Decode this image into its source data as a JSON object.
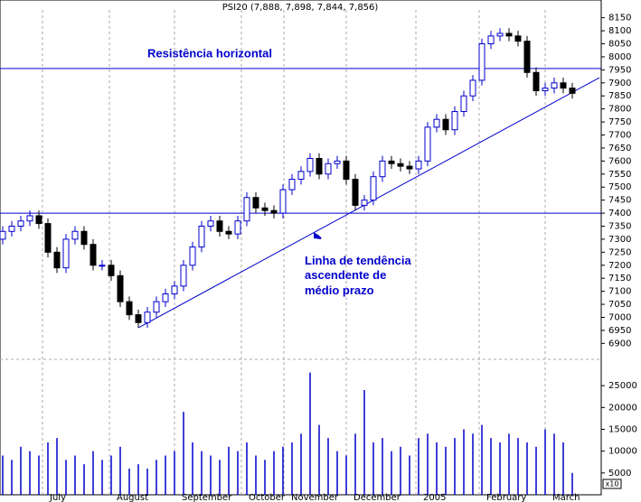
{
  "chart_data": {
    "type": "candlestick",
    "title": "PSI20 (7,888, 7,898, 7,844, 7,856)",
    "xlim": [
      -0.3,
      66.2
    ],
    "xticks": [
      {
        "value": 4.4,
        "label": "July"
      },
      {
        "value": 11.8,
        "label": "August"
      },
      {
        "value": 19,
        "label": "September"
      },
      {
        "value": 26.4,
        "label": "October"
      },
      {
        "value": 31.1,
        "label": "November"
      },
      {
        "value": 38,
        "label": "December"
      },
      {
        "value": 45.7,
        "label": "2005"
      },
      {
        "value": 52.7,
        "label": "February"
      },
      {
        "value": 60,
        "label": "March"
      }
    ],
    "ylim": [
      6870,
      8180
    ],
    "yticks": [
      6900,
      6950,
      7000,
      7050,
      7100,
      7150,
      7200,
      7250,
      7300,
      7350,
      7400,
      7450,
      7500,
      7550,
      7600,
      7650,
      7700,
      7750,
      7800,
      7850,
      7900,
      7950,
      8000,
      8050,
      8100,
      8150
    ],
    "open": [
      7300,
      7330,
      7350,
      7370,
      7390,
      7360,
      7250,
      7190,
      7300,
      7330,
      7280,
      7200,
      7200,
      7160,
      7060,
      7010,
      6980,
      7020,
      7060,
      7090,
      7120,
      7200,
      7270,
      7350,
      7370,
      7330,
      7320,
      7370,
      7460,
      7420,
      7410,
      7400,
      7490,
      7530,
      7560,
      7610,
      7550,
      7590,
      7600,
      7530,
      7430,
      7450,
      7540,
      7600,
      7590,
      7580,
      7570,
      7600,
      7730,
      7760,
      7720,
      7790,
      7850,
      7910,
      8050,
      8080,
      8090,
      8080,
      8060,
      7940,
      7870,
      7880,
      7900,
      7880
    ],
    "high": [
      7350,
      7370,
      7390,
      7410,
      7410,
      7380,
      7270,
      7320,
      7350,
      7350,
      7300,
      7220,
      7220,
      7180,
      7080,
      7030,
      7040,
      7080,
      7110,
      7140,
      7220,
      7290,
      7370,
      7390,
      7390,
      7350,
      7390,
      7480,
      7480,
      7440,
      7430,
      7510,
      7550,
      7580,
      7630,
      7630,
      7610,
      7620,
      7620,
      7550,
      7470,
      7560,
      7620,
      7620,
      7610,
      7600,
      7620,
      7750,
      7780,
      7780,
      7810,
      7870,
      7930,
      8070,
      8100,
      8110,
      8110,
      8100,
      8080,
      7960,
      7900,
      7920,
      7920,
      7900
    ],
    "low": [
      7280,
      7310,
      7330,
      7350,
      7340,
      7230,
      7170,
      7170,
      7280,
      7260,
      7180,
      7180,
      7140,
      7040,
      6990,
      6960,
      6960,
      7000,
      7040,
      7070,
      7100,
      7180,
      7250,
      7330,
      7310,
      7300,
      7300,
      7350,
      7400,
      7390,
      7380,
      7380,
      7470,
      7510,
      7540,
      7530,
      7530,
      7570,
      7510,
      7410,
      7410,
      7430,
      7520,
      7570,
      7560,
      7550,
      7550,
      7580,
      7710,
      7700,
      7700,
      7770,
      7830,
      7890,
      8030,
      8060,
      8060,
      8040,
      7920,
      7850,
      7850,
      7860,
      7860,
      7840
    ],
    "close": [
      7330,
      7350,
      7370,
      7390,
      7360,
      7250,
      7190,
      7300,
      7330,
      7280,
      7200,
      7200,
      7160,
      7060,
      7010,
      6980,
      7020,
      7060,
      7090,
      7120,
      7200,
      7270,
      7350,
      7370,
      7330,
      7320,
      7370,
      7460,
      7420,
      7410,
      7400,
      7490,
      7530,
      7560,
      7610,
      7550,
      7590,
      7600,
      7530,
      7430,
      7450,
      7540,
      7600,
      7590,
      7580,
      7570,
      7600,
      7730,
      7760,
      7720,
      7790,
      7850,
      7910,
      8050,
      8080,
      8090,
      8080,
      8060,
      7940,
      7870,
      7880,
      7900,
      7880,
      7860
    ],
    "up_color": "#0000cc",
    "down_color": "#000000",
    "hlines": [
      7955,
      7400
    ],
    "trendline": {
      "x": [
        15,
        66
      ],
      "y": [
        6960,
        7920
      ]
    },
    "line_color": "#0000cc",
    "annotations": [
      {
        "text": "Resistência horizontal",
        "x": 16,
        "y": 8010
      },
      {
        "text": "Linha de tendência",
        "x": 33.4,
        "y": 7215
      },
      {
        "text": "ascendente de",
        "x": 33.4,
        "y": 7160
      },
      {
        "text": "médio prazo",
        "x": 33.4,
        "y": 7100
      }
    ],
    "volume": {
      "values": [
        9000,
        8000,
        11000,
        10000,
        9000,
        12000,
        13000,
        8000,
        9000,
        7000,
        10000,
        8000,
        9000,
        11000,
        6000,
        7000,
        6000,
        8000,
        9000,
        10000,
        19000,
        12000,
        10000,
        9000,
        8000,
        11000,
        10000,
        12000,
        9000,
        8000,
        10000,
        11000,
        12000,
        14000,
        28000,
        16000,
        13000,
        10000,
        9000,
        14000,
        24000,
        12000,
        13000,
        10000,
        11000,
        9000,
        13000,
        14000,
        12000,
        11000,
        13000,
        15000,
        14000,
        16000,
        13000,
        12000,
        14000,
        13000,
        12000,
        11000,
        15000,
        14000,
        12000,
        5000
      ],
      "ylim": [
        0,
        30000
      ],
      "yticks": [
        5000,
        10000,
        15000,
        20000,
        25000
      ],
      "color": "#0000cc",
      "scale_label": "x10"
    }
  }
}
